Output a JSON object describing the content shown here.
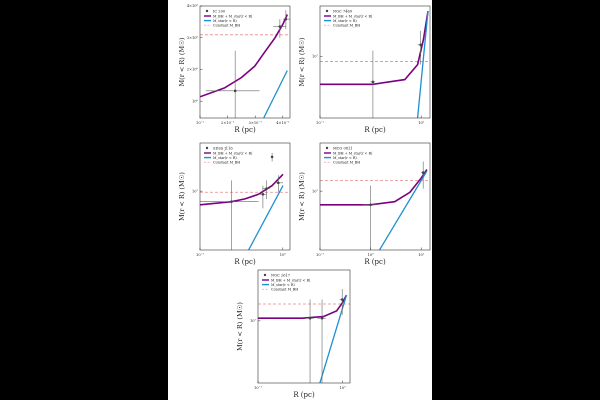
{
  "chart_data": [
    {
      "type": "line",
      "legend_title": "IC 200",
      "legend_entries": [
        "M_BH + M_star(r < R)",
        "M_star(r < R)",
        "Constant M_BH"
      ],
      "xlabel": "R (pc)",
      "ylabel": "M(r < R) (M☉)",
      "xscale": "log",
      "yscale": "log",
      "xlim": [
        0.1,
        0.45
      ],
      "ylim": [
        100000000.0,
        400000000.0
      ],
      "x_tick_labels": [
        "10⁻¹",
        "2×10⁻¹",
        "3×10⁻¹",
        "4×10⁻¹"
      ],
      "y_tick_labels": [
        "4×10⁸",
        "3×10⁸",
        "2×10⁸",
        "10⁸"
      ],
      "constant_mbh": 280000000.0,
      "series": [
        {
          "name": "M_BH + M_star(r < R)",
          "color": "#7a0080",
          "x": [
            0.1,
            0.15,
            0.2,
            0.25,
            0.3,
            0.35,
            0.4,
            0.43
          ],
          "y": [
            130000000.0,
            145000000.0,
            165000000.0,
            190000000.0,
            230000000.0,
            270000000.0,
            320000000.0,
            360000000.0
          ]
        },
        {
          "name": "M_star(r < R)",
          "color": "#1e90d0",
          "x": [
            0.29,
            0.43
          ],
          "y": [
            100000000.0,
            180000000.0
          ]
        }
      ],
      "points": [
        {
          "x": 0.18,
          "y": 140000000.0,
          "xerr": [
            0.11,
            0.27
          ],
          "yerr": [
            100000000.0,
            230000000.0
          ]
        },
        {
          "x": 0.38,
          "y": 310000000.0,
          "xerr": [
            0.34,
            0.42
          ],
          "yerr": [
            270000000.0,
            340000000.0
          ]
        },
        {
          "x": 0.42,
          "y": 340000000.0,
          "xerr": [
            0.4,
            0.45
          ],
          "yerr": [
            300000000.0,
            380000000.0
          ]
        }
      ]
    },
    {
      "type": "line",
      "legend_title": "NGC 7469",
      "legend_entries": [
        "M_BH + M_star(r < R)",
        "M_star(r < R)",
        "Constant M_BH"
      ],
      "xlabel": "R (pc)",
      "ylabel": "M(r < R) (M☉)",
      "xscale": "log",
      "yscale": "log",
      "xlim": [
        0.1,
        12
      ],
      "ylim": [
        10000000.0,
        100000000.0
      ],
      "x_tick_labels": [
        "10⁻¹",
        "10⁰"
      ],
      "y_tick_labels": [
        "10⁷"
      ],
      "constant_mbh": 32000000.0,
      "series": [
        {
          "name": "M_BH + M_star(r < R)",
          "color": "#7a0080",
          "x": [
            0.1,
            1,
            4,
            7,
            9,
            11
          ],
          "y": [
            20000000.0,
            20000000.0,
            22000000.0,
            30000000.0,
            50000000.0,
            90000000.0
          ]
        },
        {
          "name": "M_star(r < R)",
          "color": "#1e90d0",
          "x": [
            7,
            11
          ],
          "y": [
            10000000.0,
            90000000.0
          ]
        }
      ],
      "points": [
        {
          "x": 1.0,
          "y": 21000000.0,
          "xerr": [
            0.9,
            1.1
          ],
          "yerr": [
            10000000.0,
            40000000.0
          ]
        },
        {
          "x": 8.0,
          "y": 45000000.0,
          "xerr": [
            7.0,
            9.0
          ],
          "yerr": [
            30000000.0,
            60000000.0
          ]
        }
      ]
    },
    {
      "type": "line",
      "legend_title": "SDSS J116",
      "legend_entries": [
        "M_BH + M_star(r < R)",
        "M_star(r < R)",
        "Constant M_BH"
      ],
      "xlabel": "R (pc)",
      "ylabel": "M(r < R) (M☉)",
      "xscale": "log",
      "yscale": "log",
      "xlim": [
        0.1,
        10
      ],
      "ylim": [
        1000000.0,
        100000000.0
      ],
      "x_tick_labels": [
        "10⁻¹",
        "10⁰"
      ],
      "y_tick_labels": [
        "10⁷"
      ],
      "constant_mbh": 12000000.0,
      "series": [
        {
          "name": "M_BH + M_star(r < R)",
          "color": "#7a0080",
          "x": [
            0.1,
            0.5,
            1,
            2,
            4,
            7
          ],
          "y": [
            7000000.0,
            8000000.0,
            9000000.0,
            11000000.0,
            16000000.0,
            26000000.0
          ]
        },
        {
          "name": "M_star(r < R)",
          "color": "#1e90d0",
          "x": [
            1.2,
            7
          ],
          "y": [
            1000000.0,
            16000000.0
          ]
        }
      ],
      "points": [
        {
          "x": 0.5,
          "y": 8000000.0,
          "xerr": [
            0.1,
            2.0
          ],
          "yerr": [
            1000000.0,
            20000000.0
          ]
        },
        {
          "x": 2.5,
          "y": 11000000.0,
          "xerr": [
            2.0,
            3.0
          ],
          "yerr": [
            6000000.0,
            16000000.0
          ]
        },
        {
          "x": 3.0,
          "y": 14000000.0,
          "xerr": [
            2.5,
            3.5
          ],
          "yerr": [
            9000000.0,
            20000000.0
          ]
        },
        {
          "x": 4.0,
          "y": 55000000.0,
          "xerr": [
            3.8,
            4.2
          ],
          "yerr": [
            45000000.0,
            65000000.0
          ]
        },
        {
          "x": 5.5,
          "y": 18000000.0,
          "xerr": [
            4.5,
            7.0
          ],
          "yerr": [
            12000000.0,
            25000000.0
          ]
        }
      ]
    },
    {
      "type": "line",
      "legend_title": "MCG 0811",
      "legend_entries": [
        "M_BH + M_star(r < R)",
        "M_star(r < R)",
        "Constant M_BH"
      ],
      "xlabel": "R (pc)",
      "ylabel": "M(r < R) (M☉)",
      "xscale": "log",
      "yscale": "log",
      "xlim": [
        0.1,
        15
      ],
      "ylim": [
        1000000.0,
        100000000.0
      ],
      "x_tick_labels": [
        "10⁻¹",
        "10⁰",
        "10¹"
      ],
      "y_tick_labels": [
        "10⁷"
      ],
      "constant_mbh": 20000000.0,
      "series": [
        {
          "name": "M_BH + M_star(r < R)",
          "color": "#7a0080",
          "x": [
            0.1,
            1,
            3,
            6,
            10,
            13
          ],
          "y": [
            7000000.0,
            7000000.0,
            8000000.0,
            12000000.0,
            22000000.0,
            32000000.0
          ]
        },
        {
          "name": "M_star(r < R)",
          "color": "#1e90d0",
          "x": [
            1.5,
            13
          ],
          "y": [
            1000000.0,
            30000000.0
          ]
        }
      ],
      "points": [
        {
          "x": 1.0,
          "y": 7000000.0,
          "xerr": [
            0.7,
            1.3
          ],
          "yerr": [
            1000000.0,
            16000000.0
          ]
        },
        {
          "x": 11.0,
          "y": 28000000.0,
          "xerr": [
            10,
            12
          ],
          "yerr": [
            14000000.0,
            45000000.0
          ]
        }
      ]
    },
    {
      "type": "line",
      "legend_title": "NGC 2617",
      "legend_entries": [
        "M_BH + M_star(r < R)",
        "M_star(r < R)",
        "Constant M_BH"
      ],
      "xlabel": "R (pc)",
      "ylabel": "M(r < R) (M☉)",
      "xscale": "log",
      "yscale": "log",
      "xlim": [
        0.1,
        12
      ],
      "ylim": [
        1000000.0,
        100000000.0
      ],
      "x_tick_labels": [
        "10⁻¹",
        "10⁰"
      ],
      "y_tick_labels": [
        "10⁷"
      ],
      "constant_mbh": 25000000.0,
      "series": [
        {
          "name": "M_BH + M_star(r < R)",
          "color": "#7a0080",
          "x": [
            0.1,
            1,
            3,
            6,
            8,
            10
          ],
          "y": [
            14000000.0,
            14000000.0,
            15000000.0,
            19000000.0,
            26000000.0,
            36000000.0
          ]
        },
        {
          "name": "M_star(r < R)",
          "color": "#1e90d0",
          "x": [
            2.5,
            10
          ],
          "y": [
            1000000.0,
            36000000.0
          ]
        }
      ],
      "points": [
        {
          "x": 1.5,
          "y": 14000000.0,
          "xerr": [
            1.2,
            1.8
          ],
          "yerr": [
            1000000.0,
            30000000.0
          ]
        },
        {
          "x": 2.8,
          "y": 14000000.0,
          "xerr": [
            2.2,
            3.4
          ],
          "yerr": [
            1000000.0,
            30000000.0
          ]
        },
        {
          "x": 8.0,
          "y": 30000000.0,
          "xerr": [
            7.0,
            9.0
          ],
          "yerr": [
            16000000.0,
            46000000.0
          ]
        }
      ]
    }
  ]
}
